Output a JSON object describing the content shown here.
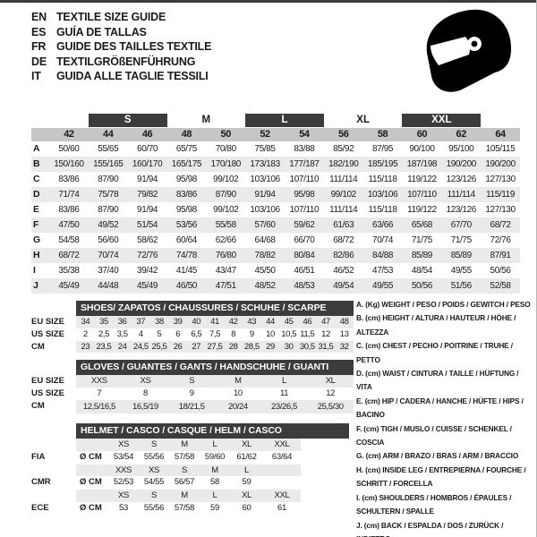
{
  "header": {
    "languages": [
      {
        "code": "EN",
        "title": "TEXTILE SIZE GUIDE"
      },
      {
        "code": "ES",
        "title": "GUÍA DE TALLAS"
      },
      {
        "code": "FR",
        "title": "GUIDE DES TAILLES TEXTILE"
      },
      {
        "code": "DE",
        "title": "TEXTILGRÖßENFÜHRUNG"
      },
      {
        "code": "IT",
        "title": "GUIDA ALLE TAGLIE TESSILI"
      }
    ],
    "icon": "racing-helmet-icon"
  },
  "colors": {
    "dark_bar": "#3c3c3c",
    "header_gray": "#c6c6c6",
    "stripe_gray": "#eaeaea",
    "text": "#1b1b1b"
  },
  "main_table": {
    "size_groups": [
      {
        "label": "S",
        "dark": true
      },
      {
        "label": "M",
        "dark": false
      },
      {
        "label": "L",
        "dark": true
      },
      {
        "label": "XL",
        "dark": false
      },
      {
        "label": "XXL",
        "dark": true
      }
    ],
    "columns": [
      "42",
      "44",
      "46",
      "48",
      "50",
      "52",
      "54",
      "56",
      "58",
      "60",
      "62",
      "64"
    ],
    "rows": [
      {
        "label": "A",
        "values": [
          "50/60",
          "55/65",
          "60/70",
          "65/75",
          "70/80",
          "75/85",
          "83/88",
          "85/92",
          "87/95",
          "90/100",
          "95/100",
          "105/115"
        ]
      },
      {
        "label": "B",
        "values": [
          "150/160",
          "155/165",
          "160/170",
          "165/175",
          "170/180",
          "173/183",
          "177/187",
          "182/190",
          "185/195",
          "187/198",
          "190/200",
          "190/200"
        ]
      },
      {
        "label": "C",
        "values": [
          "83/86",
          "87/90",
          "91/94",
          "95/98",
          "99/102",
          "103/106",
          "107/110",
          "111/114",
          "115/118",
          "119/122",
          "123/126",
          "127/130"
        ]
      },
      {
        "label": "D",
        "values": [
          "71/74",
          "75/78",
          "79/82",
          "83/86",
          "87/90",
          "91/94",
          "95/98",
          "99/102",
          "103/106",
          "107/110",
          "111/114",
          "115/119"
        ]
      },
      {
        "label": "E",
        "values": [
          "83/86",
          "87/90",
          "91/94",
          "95/98",
          "99/102",
          "103/106",
          "107/110",
          "111/114",
          "115/118",
          "119/122",
          "123/126",
          "127/130"
        ]
      },
      {
        "label": "F",
        "values": [
          "47/50",
          "49/52",
          "51/54",
          "53/56",
          "55/58",
          "57/60",
          "59/62",
          "61/63",
          "63/66",
          "65/68",
          "67/70",
          "68/72"
        ]
      },
      {
        "label": "G",
        "values": [
          "54/58",
          "56/60",
          "58/62",
          "60/64",
          "62/66",
          "64/68",
          "66/70",
          "68/72",
          "70/74",
          "71/75",
          "71/75",
          "72/76"
        ]
      },
      {
        "label": "H",
        "values": [
          "68/72",
          "70/74",
          "72/76",
          "74/78",
          "76/80",
          "78/82",
          "80/84",
          "82/86",
          "84/88",
          "85/89",
          "85/89",
          "87/91"
        ]
      },
      {
        "label": "I",
        "values": [
          "35/38",
          "37/40",
          "39/42",
          "41/45",
          "43/47",
          "45/50",
          "46/51",
          "46/52",
          "47/53",
          "48/54",
          "49/55",
          "50/56"
        ]
      },
      {
        "label": "J",
        "values": [
          "45/49",
          "44/48",
          "45/49",
          "46/50",
          "47/51",
          "48/52",
          "48/53",
          "49/54",
          "49/55",
          "50/56",
          "51/56",
          "52/58"
        ]
      }
    ]
  },
  "shoes_table": {
    "title": "SHOES/ ZAPATOS / CHAUSSURES / SCHUHE / SCARPE",
    "rows": [
      {
        "label": "EU SIZE",
        "stripe": true,
        "values": [
          "34",
          "35",
          "36",
          "37",
          "38",
          "39",
          "40",
          "41",
          "42",
          "43",
          "44",
          "45",
          "46",
          "47",
          "48"
        ]
      },
      {
        "label": "US SIZE",
        "stripe": false,
        "values": [
          "2",
          "2,5",
          "3,5",
          "4",
          "5",
          "6",
          "6,5",
          "7,5",
          "8",
          "9",
          "10",
          "10,5",
          "11,5",
          "12",
          "13"
        ]
      },
      {
        "label": "CM",
        "stripe": true,
        "values": [
          "23",
          "23,5",
          "24",
          "24,5",
          "25,5",
          "26",
          "27",
          "27,5",
          "28",
          "28,5",
          "29",
          "30",
          "30,5",
          "31,5",
          "32"
        ]
      }
    ]
  },
  "gloves_table": {
    "title": "GLOVES / GUANTES / GANTS / HANDSCHUHE / GUANTI",
    "rows": [
      {
        "label": "EU SIZE",
        "stripe": true,
        "values": [
          "XXS",
          "XS",
          "S",
          "M",
          "L",
          "XL"
        ]
      },
      {
        "label": "US SIZE",
        "stripe": false,
        "values": [
          "7",
          "8",
          "9",
          "10",
          "11",
          "12"
        ]
      },
      {
        "label": "CM",
        "stripe": true,
        "values": [
          "12,5/16,5",
          "16,5/19",
          "18/21,5",
          "20/24",
          "23/26,5",
          "25,5/30"
        ]
      }
    ]
  },
  "helmet_table": {
    "title": "HELMET / CASCO / CASQUE / HELM / CASCO",
    "sections": [
      {
        "label": "FIA",
        "unit": "Ø CM",
        "sizes": [
          "XS",
          "S",
          "M",
          "L",
          "XL",
          "XXL"
        ],
        "values": [
          "53/54",
          "55/56",
          "57/58",
          "59/60",
          "61/62",
          "63/64"
        ]
      },
      {
        "label": "CMR",
        "unit": "Ø CM",
        "sizes": [
          "XXS",
          "XS",
          "S",
          "M",
          "L",
          ""
        ],
        "values": [
          "52/53",
          "54/55",
          "56/57",
          "58",
          "59",
          ""
        ]
      },
      {
        "label": "ECE",
        "unit": "Ø CM",
        "sizes": [
          "XS",
          "S",
          "M",
          "L",
          "XL",
          "XXL"
        ],
        "values": [
          "53",
          "55/56",
          "57/58",
          "59",
          "60",
          "61"
        ]
      }
    ]
  },
  "legend": {
    "items": [
      "A. (Kg) WEIGHT / PESO / POIDS / GEWITCH / PESO",
      "B. (cm) HEIGHT / ALTURA / HAUTEUR / HÖHE / ALTEZZA",
      "C. (cm) CHEST / PECHO / POITRINE / TRUHE / PETTO",
      "D. (cm) WAIST / CINTURA / TAILLE / HÜFTUNG / VITA",
      "E. (cm) HIP / CADERA / HANCHE / HÜFTE / HIPS / BACINO",
      "F. (cm) TIGH / MUSLO / CUISSE / SCHENKEL / COSCIA",
      "G. (cm) ARM / BRAZO / BRAS / ARM / BRACCIO",
      "H. (cm) INSIDE LEG / ENTREPIERNA / FOURCHE / SCHRITT / FORCELLA",
      "I. (cm) SHOULDERS / HOMBROS / ÉPAULES / SCHULTERN / SPALLE",
      "J. (cm) BACK / ESPALDA / DOS / ZURÜCK / INDIETRO"
    ]
  }
}
